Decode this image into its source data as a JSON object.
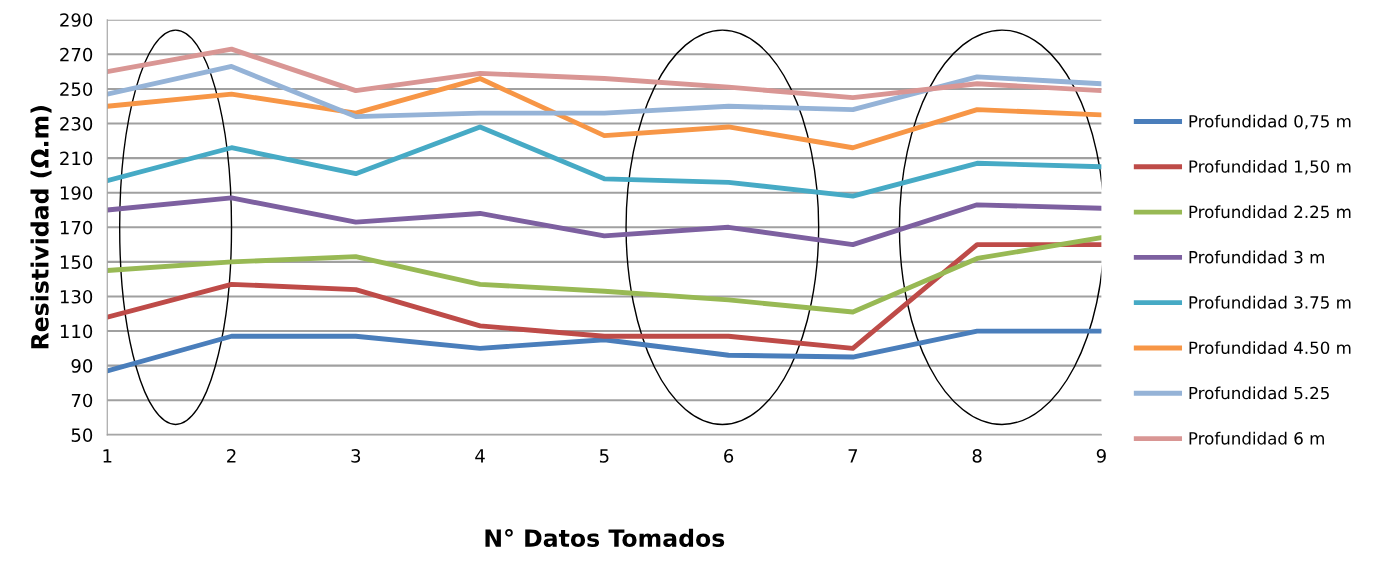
{
  "chart_data": {
    "type": "line",
    "xlabel": "N° Datos Tomados",
    "ylabel": "Resistividad (Ω.m)",
    "x": [
      1,
      2,
      3,
      4,
      5,
      6,
      7,
      8,
      9
    ],
    "xlim": [
      1,
      9
    ],
    "xticks": [
      1,
      2,
      3,
      4,
      5,
      6,
      7,
      8,
      9
    ],
    "ylim": [
      50,
      290
    ],
    "yticks": [
      50,
      70,
      90,
      110,
      130,
      150,
      170,
      190,
      210,
      230,
      250,
      270,
      290
    ],
    "grid": "y",
    "legend": "right",
    "marker": "none",
    "line_style": "solid",
    "series": [
      {
        "name": "Profundidad 0,75 m",
        "color": "#4a7ebb",
        "values": [
          87,
          107,
          107,
          100,
          105,
          96,
          95,
          110,
          110
        ]
      },
      {
        "name": "Profundidad 1,50 m",
        "color": "#be4b48",
        "values": [
          118,
          137,
          134,
          113,
          107,
          107,
          100,
          160,
          160
        ]
      },
      {
        "name": "Profundidad 2.25 m",
        "color": "#98b954",
        "values": [
          145,
          150,
          153,
          137,
          133,
          128,
          121,
          152,
          164
        ]
      },
      {
        "name": "Profundidad 3 m",
        "color": "#7d60a0",
        "values": [
          180,
          187,
          173,
          178,
          165,
          170,
          160,
          183,
          181
        ]
      },
      {
        "name": "Profundidad 3.75 m",
        "color": "#46aac5",
        "values": [
          197,
          216,
          201,
          228,
          198,
          196,
          188,
          207,
          205
        ]
      },
      {
        "name": "Profundidad 4.50 m",
        "color": "#f79646",
        "values": [
          240,
          247,
          236,
          256,
          223,
          228,
          216,
          238,
          235
        ]
      },
      {
        "name": "Profundidad 5.25",
        "color": "#95b3d7",
        "values": [
          247,
          263,
          234,
          236,
          236,
          240,
          238,
          257,
          253
        ]
      },
      {
        "name": "Profundidad 6 m",
        "color": "#d99694",
        "values": [
          260,
          273,
          249,
          259,
          256,
          251,
          245,
          253,
          249
        ]
      }
    ]
  }
}
